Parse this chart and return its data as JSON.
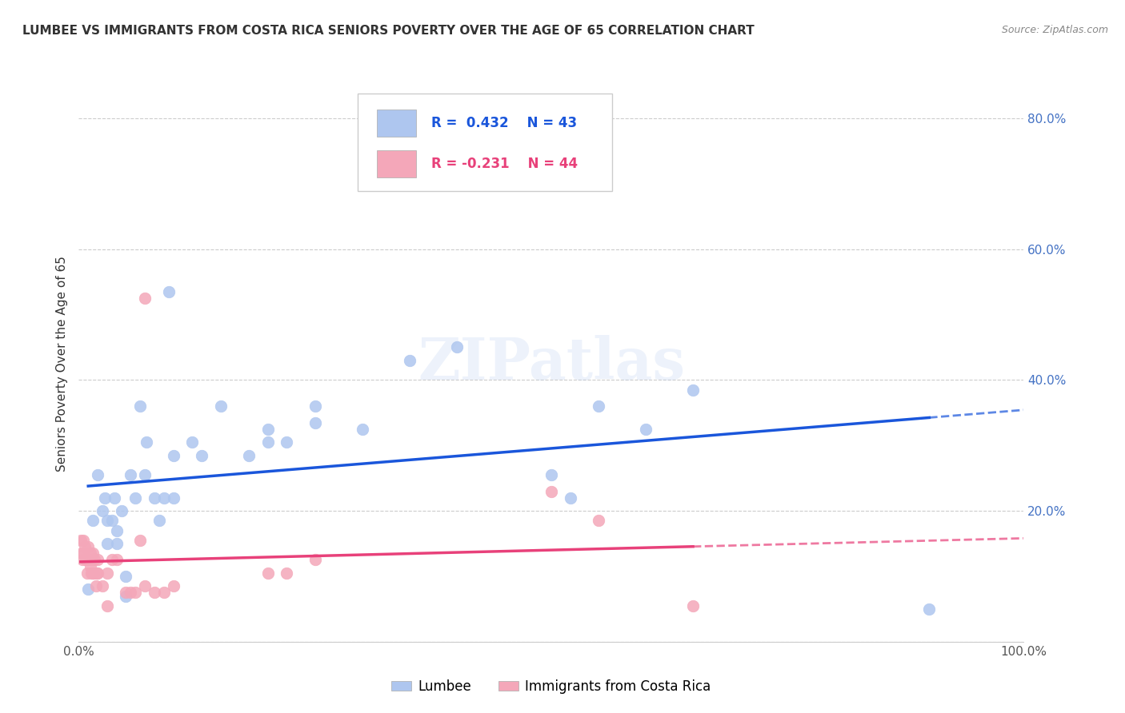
{
  "title": "LUMBEE VS IMMIGRANTS FROM COSTA RICA SENIORS POVERTY OVER THE AGE OF 65 CORRELATION CHART",
  "source": "Source: ZipAtlas.com",
  "ylabel": "Seniors Poverty Over the Age of 65",
  "xlim": [
    0,
    1.0
  ],
  "ylim": [
    0,
    0.85
  ],
  "yticks": [
    0.0,
    0.2,
    0.4,
    0.6,
    0.8
  ],
  "ytick_labels": [
    "",
    "20.0%",
    "40.0%",
    "60.0%",
    "80.0%"
  ],
  "xticks": [
    0.0,
    0.2,
    0.4,
    0.6,
    0.8,
    1.0
  ],
  "xtick_labels": [
    "0.0%",
    "",
    "",
    "",
    "",
    "100.0%"
  ],
  "legend_labels": [
    "Lumbee",
    "Immigrants from Costa Rica"
  ],
  "lumbee_R": "0.432",
  "lumbee_N": "43",
  "costa_rica_R": "-0.231",
  "costa_rica_N": "44",
  "lumbee_color": "#aec6ef",
  "costa_rica_color": "#f4a7b9",
  "lumbee_line_color": "#1a56db",
  "costa_rica_line_color": "#e8417a",
  "background_color": "#ffffff",
  "watermark": "ZIPatlas",
  "lumbee_x": [
    0.01,
    0.015,
    0.02,
    0.025,
    0.028,
    0.03,
    0.03,
    0.035,
    0.038,
    0.04,
    0.04,
    0.045,
    0.05,
    0.05,
    0.055,
    0.06,
    0.065,
    0.07,
    0.072,
    0.08,
    0.085,
    0.09,
    0.095,
    0.1,
    0.1,
    0.12,
    0.13,
    0.15,
    0.18,
    0.2,
    0.2,
    0.22,
    0.25,
    0.25,
    0.3,
    0.35,
    0.4,
    0.5,
    0.52,
    0.55,
    0.6,
    0.65,
    0.9
  ],
  "lumbee_y": [
    0.08,
    0.185,
    0.255,
    0.2,
    0.22,
    0.185,
    0.15,
    0.185,
    0.22,
    0.17,
    0.15,
    0.2,
    0.1,
    0.07,
    0.255,
    0.22,
    0.36,
    0.255,
    0.305,
    0.22,
    0.185,
    0.22,
    0.535,
    0.285,
    0.22,
    0.305,
    0.285,
    0.36,
    0.285,
    0.325,
    0.305,
    0.305,
    0.36,
    0.335,
    0.325,
    0.43,
    0.45,
    0.255,
    0.22,
    0.36,
    0.325,
    0.385,
    0.05
  ],
  "costa_rica_x": [
    0.002,
    0.003,
    0.004,
    0.005,
    0.005,
    0.006,
    0.007,
    0.008,
    0.009,
    0.01,
    0.01,
    0.012,
    0.012,
    0.013,
    0.013,
    0.014,
    0.015,
    0.015,
    0.016,
    0.017,
    0.018,
    0.019,
    0.02,
    0.02,
    0.025,
    0.03,
    0.03,
    0.035,
    0.04,
    0.05,
    0.055,
    0.06,
    0.065,
    0.07,
    0.07,
    0.08,
    0.09,
    0.1,
    0.2,
    0.22,
    0.25,
    0.5,
    0.55,
    0.65
  ],
  "costa_rica_y": [
    0.155,
    0.135,
    0.125,
    0.155,
    0.135,
    0.145,
    0.125,
    0.125,
    0.105,
    0.145,
    0.125,
    0.135,
    0.115,
    0.125,
    0.105,
    0.125,
    0.135,
    0.105,
    0.105,
    0.125,
    0.085,
    0.105,
    0.105,
    0.125,
    0.085,
    0.105,
    0.055,
    0.125,
    0.125,
    0.075,
    0.075,
    0.075,
    0.155,
    0.525,
    0.085,
    0.075,
    0.075,
    0.085,
    0.105,
    0.105,
    0.125,
    0.23,
    0.185,
    0.055
  ],
  "title_fontsize": 11,
  "axis_fontsize": 11,
  "tick_fontsize": 11
}
